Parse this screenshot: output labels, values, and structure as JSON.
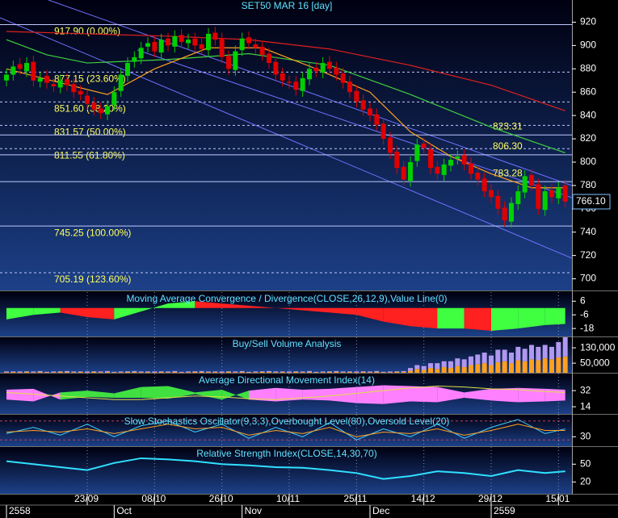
{
  "chart_data": [
    {
      "type": "candlestick",
      "title": "SET50 MAR 16   [day]",
      "open": [
        870,
        875,
        884,
        878,
        886,
        869,
        874,
        867,
        864,
        871,
        867,
        861,
        857,
        851,
        846,
        841,
        849,
        861,
        874,
        886,
        889,
        899,
        903,
        894,
        906,
        899,
        909,
        902,
        906,
        901,
        896,
        911,
        906,
        891,
        879,
        896,
        907,
        901,
        899,
        893,
        886,
        876,
        869,
        869,
        861,
        871,
        881,
        877,
        886,
        881,
        876,
        869,
        861,
        853,
        846,
        841,
        833,
        821,
        809,
        796,
        784,
        801,
        816,
        811,
        796,
        789,
        797,
        803,
        806,
        799,
        791,
        786,
        776,
        771,
        761,
        749,
        764,
        774,
        789,
        781,
        759,
        776,
        769,
        780
      ],
      "high": [
        880,
        887,
        889,
        890,
        891,
        877,
        879,
        872,
        875,
        876,
        872,
        866,
        862,
        856,
        851,
        853,
        865,
        880,
        890,
        895,
        903,
        907,
        908,
        910,
        911,
        913,
        914,
        910,
        911,
        906,
        915,
        916,
        911,
        896,
        900,
        911,
        912,
        906,
        904,
        898,
        891,
        881,
        874,
        874,
        877,
        885,
        886,
        890,
        891,
        886,
        881,
        874,
        866,
        858,
        851,
        846,
        838,
        826,
        814,
        801,
        805,
        820,
        821,
        816,
        801,
        803,
        807,
        810,
        811,
        804,
        796,
        791,
        781,
        776,
        766,
        770,
        780,
        793,
        794,
        786,
        780,
        781,
        783,
        785
      ],
      "low": [
        865,
        870,
        875,
        873,
        865,
        864,
        863,
        860,
        859,
        861,
        855,
        853,
        845,
        840,
        837,
        836,
        844,
        856,
        869,
        881,
        884,
        894,
        890,
        889,
        895,
        894,
        898,
        897,
        895,
        892,
        891,
        900,
        885,
        875,
        874,
        891,
        897,
        893,
        887,
        880,
        870,
        865,
        863,
        857,
        856,
        866,
        873,
        872,
        875,
        870,
        863,
        855,
        847,
        840,
        835,
        827,
        815,
        803,
        790,
        780,
        779,
        796,
        807,
        790,
        785,
        784,
        792,
        798,
        793,
        785,
        780,
        770,
        765,
        755,
        745,
        744,
        759,
        769,
        775,
        755,
        754,
        765,
        764,
        761
      ],
      "close": [
        875,
        882,
        880,
        885,
        870,
        872,
        868,
        865,
        870,
        866,
        860,
        858,
        850,
        845,
        842,
        848,
        860,
        875,
        885,
        890,
        898,
        902,
        895,
        905,
        900,
        908,
        903,
        905,
        900,
        897,
        910,
        905,
        890,
        880,
        895,
        906,
        902,
        898,
        892,
        885,
        875,
        870,
        868,
        862,
        872,
        880,
        878,
        885,
        880,
        875,
        868,
        860,
        852,
        845,
        840,
        832,
        820,
        808,
        795,
        785,
        800,
        815,
        812,
        795,
        790,
        798,
        802,
        805,
        798,
        790,
        785,
        775,
        770,
        760,
        750,
        765,
        775,
        788,
        780,
        760,
        775,
        770,
        778,
        766.1
      ],
      "up_color": "#00d000",
      "down_color": "#e00000",
      "xlim": [
        -1,
        84
      ],
      "ylim": [
        690,
        939
      ],
      "yticks": [
        700,
        720,
        740,
        760,
        780,
        800,
        820,
        840,
        860,
        880,
        900,
        920
      ],
      "xticks": [
        {
          "value": 12,
          "label": "23/09"
        },
        {
          "value": 22,
          "label": "08/10"
        },
        {
          "value": 32,
          "label": "26/10"
        },
        {
          "value": 42,
          "label": "10/11"
        },
        {
          "value": 52,
          "label": "25/11"
        },
        {
          "value": 62,
          "label": "14/12"
        },
        {
          "value": 72,
          "label": "29/12"
        },
        {
          "value": 82,
          "label": "15/01"
        }
      ],
      "xticks_secondary": [
        {
          "value": 0,
          "label": "2558"
        },
        {
          "value": 16,
          "label": "Oct"
        },
        {
          "value": 35,
          "label": "Nov"
        },
        {
          "value": 54,
          "label": "Dec"
        },
        {
          "value": 72,
          "label": "2559"
        }
      ],
      "overlays": [
        {
          "color": "#e02020",
          "x": [
            0,
            12,
            24,
            36,
            48,
            60,
            72,
            83
          ],
          "values": [
            912,
            910,
            908,
            905,
            897,
            883,
            866,
            844
          ]
        },
        {
          "color": "#40d040",
          "x": [
            0,
            6,
            12,
            24,
            36,
            48,
            60,
            72,
            83
          ],
          "values": [
            905,
            892,
            885,
            888,
            893,
            883,
            858,
            830,
            808
          ]
        },
        {
          "color": "#ffa020",
          "x": [
            0,
            8,
            15,
            22,
            30,
            38,
            46,
            54,
            60,
            66,
            72,
            78,
            83
          ],
          "values": [
            880,
            868,
            858,
            880,
            898,
            898,
            880,
            860,
            826,
            805,
            790,
            778,
            778
          ]
        }
      ],
      "levels": [
        {
          "value": 917.9,
          "label": "917.90 (0.00%)",
          "style": "solid"
        },
        {
          "value": 877.15,
          "label": "877.15 (23.60%)",
          "style": "dashed"
        },
        {
          "value": 851.6,
          "label": "851.60 (38.20%)",
          "style": "dashed"
        },
        {
          "value": 831.57,
          "label": "831.57 (50.00%)",
          "style": "dashed"
        },
        {
          "value": 811.55,
          "label": "811.55 (61.80%)",
          "style": "dashed"
        },
        {
          "value": 745.25,
          "label": "745.25 (100.00%)",
          "style": "solid"
        },
        {
          "value": 705.19,
          "label": "705.19 (123.60%)",
          "style": "dashed"
        }
      ],
      "annotations": [
        {
          "value": 823.31,
          "label": "823.31"
        },
        {
          "value": 806.3,
          "label": "806.30"
        },
        {
          "value": 783.28,
          "label": "783.28"
        }
      ],
      "last_price": {
        "value": 766.1,
        "label": "766.10"
      }
    },
    {
      "type": "area",
      "title": "Moving Average Convergence / Divergence(CLOSE,26,12,9),Value Line(0)",
      "x": [
        0,
        4,
        8,
        12,
        16,
        20,
        24,
        28,
        32,
        36,
        40,
        44,
        48,
        52,
        56,
        60,
        64,
        68,
        72,
        76,
        80,
        83
      ],
      "values": [
        -10,
        -6,
        -4,
        -8,
        -10,
        -3,
        4,
        6,
        4,
        2,
        0,
        -2,
        -4,
        -6,
        -12,
        -16,
        -18,
        -18,
        -20,
        -18,
        -15,
        -14
      ],
      "up_color": "#40ff40",
      "down_color": "#ff2020",
      "ylim": [
        -25,
        14
      ],
      "yticks": [
        6,
        -6,
        -18
      ]
    },
    {
      "type": "stacked_bar",
      "title": "Buy/Sell Volume Analysis",
      "series": [
        {
          "color": "#ffa020",
          "values": [
            3000,
            4000,
            2000,
            5000,
            3000,
            4000,
            2000,
            3000,
            5000,
            4000,
            3000,
            4000,
            2000,
            5000,
            3000,
            4000,
            2000,
            3000,
            5000,
            4000,
            3000,
            4000,
            2000,
            5000,
            3000,
            4000,
            2000,
            3000,
            5000,
            4000,
            3000,
            4000,
            2000,
            5000,
            3000,
            4000,
            2000,
            3000,
            5000,
            4000,
            3000,
            4000,
            2000,
            5000,
            3000,
            4000,
            2000,
            3000,
            5000,
            4000,
            3000,
            4000,
            2000,
            5000,
            3000,
            4000,
            2000,
            3000,
            5000,
            4000,
            10000,
            20000,
            15000,
            25000,
            20000,
            30000,
            25000,
            35000,
            30000,
            40000,
            45000,
            50000,
            40000,
            55000,
            60000,
            50000,
            65000,
            60000,
            70000,
            65000,
            75000,
            70000,
            80000,
            85000
          ]
        },
        {
          "color": "#b098f0",
          "values": [
            4000,
            3000,
            5000,
            3000,
            4000,
            5000,
            3000,
            4000,
            3000,
            5000,
            4000,
            3000,
            5000,
            3000,
            4000,
            5000,
            3000,
            4000,
            3000,
            5000,
            4000,
            3000,
            5000,
            3000,
            4000,
            5000,
            3000,
            4000,
            3000,
            5000,
            4000,
            3000,
            5000,
            3000,
            4000,
            5000,
            3000,
            4000,
            3000,
            5000,
            4000,
            3000,
            5000,
            3000,
            4000,
            5000,
            3000,
            4000,
            3000,
            5000,
            4000,
            3000,
            5000,
            3000,
            4000,
            5000,
            3000,
            4000,
            3000,
            5000,
            15000,
            20000,
            20000,
            25000,
            30000,
            30000,
            35000,
            40000,
            40000,
            45000,
            50000,
            55000,
            50000,
            65000,
            60000,
            55000,
            70000,
            65000,
            75000,
            70000,
            70000,
            65000,
            80000,
            100000
          ]
        }
      ],
      "ylim": [
        0,
        185000
      ],
      "yticks": [
        {
          "value": 130000,
          "label": "130,000"
        },
        {
          "value": 50000,
          "label": "50,000"
        }
      ]
    },
    {
      "type": "band",
      "title": "Average Directional Movement Index(14)",
      "x": [
        0,
        4,
        8,
        12,
        16,
        20,
        24,
        28,
        32,
        36,
        40,
        44,
        48,
        52,
        56,
        60,
        64,
        68,
        72,
        76,
        80,
        83
      ],
      "series": [
        {
          "color": "#40e040",
          "values": [
            22,
            20,
            30,
            32,
            29,
            36,
            37,
            30,
            33,
            22,
            20,
            22,
            21,
            18,
            17,
            20,
            19,
            24,
            21,
            19,
            20,
            21
          ]
        },
        {
          "color": "#ff80ff",
          "values": [
            33,
            34,
            22,
            25,
            24,
            24,
            23,
            28,
            22,
            32,
            35,
            33,
            34,
            36,
            38,
            37,
            36,
            30,
            34,
            35,
            34,
            33
          ]
        },
        {
          "color": "#e0e040",
          "values": [
            30,
            28,
            26,
            24,
            22,
            22,
            24,
            26,
            25,
            23,
            22,
            24,
            26,
            29,
            32,
            35,
            37,
            36,
            34,
            33,
            31,
            30
          ]
        }
      ],
      "ylim": [
        6,
        51
      ],
      "yticks": [
        32,
        14
      ]
    },
    {
      "type": "line",
      "title": "Slow Stochastics Oscillator(9,3,3),Overbought Level(80),Oversold Level(20)",
      "x": [
        0,
        4,
        8,
        12,
        16,
        20,
        24,
        28,
        32,
        36,
        40,
        44,
        48,
        52,
        56,
        60,
        64,
        68,
        72,
        76,
        80,
        83
      ],
      "series": [
        {
          "color": "#40d0ff",
          "values": [
            40,
            60,
            35,
            70,
            30,
            65,
            80,
            45,
            70,
            25,
            60,
            30,
            75,
            20,
            55,
            30,
            70,
            25,
            60,
            85,
            40,
            55
          ]
        },
        {
          "color": "#ffa020",
          "values": [
            45,
            50,
            45,
            55,
            40,
            55,
            70,
            55,
            60,
            35,
            50,
            40,
            60,
            30,
            45,
            40,
            55,
            35,
            50,
            70,
            50,
            50
          ]
        }
      ],
      "levels": [
        80,
        20
      ],
      "level_color": "#c04060",
      "ylim": [
        0,
        100
      ],
      "yticks": [
        30
      ]
    },
    {
      "type": "line",
      "title": "Relative Strength Index(CLOSE,14,30,70)",
      "x": [
        0,
        4,
        8,
        12,
        16,
        20,
        24,
        28,
        32,
        36,
        40,
        44,
        48,
        52,
        56,
        60,
        64,
        68,
        72,
        76,
        80,
        83
      ],
      "series": [
        {
          "color": "#30e0ff",
          "values": [
            55,
            50,
            45,
            40,
            52,
            60,
            58,
            55,
            50,
            48,
            45,
            44,
            40,
            35,
            25,
            30,
            38,
            35,
            30,
            40,
            35,
            38
          ]
        }
      ],
      "ylim": [
        0,
        79
      ],
      "yticks": [
        50,
        20
      ]
    }
  ]
}
